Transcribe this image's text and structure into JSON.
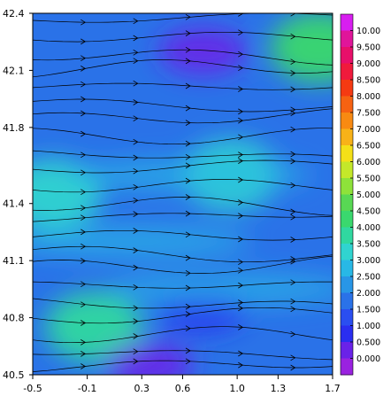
{
  "chart_data": {
    "type": "heatmap",
    "title": "",
    "xlabel": "",
    "ylabel": "",
    "xlim": [
      -0.5,
      1.7
    ],
    "ylim": [
      40.5,
      42.4
    ],
    "x_ticks": [
      "-0.5",
      "-0.1",
      "0.3",
      "0.6",
      "1.0",
      "1.3",
      "1.7"
    ],
    "x_tick_values": [
      -0.5,
      -0.1,
      0.3,
      0.6,
      1.0,
      1.3,
      1.7
    ],
    "y_ticks": [
      "42.4",
      "42.1",
      "41.8",
      "41.4",
      "41.1",
      "40.8",
      "40.5"
    ],
    "y_tick_values": [
      42.4,
      42.1,
      41.8,
      41.4,
      41.1,
      40.8,
      40.5
    ],
    "colorbar": {
      "labels": [
        "10.00",
        "9.500",
        "9.000",
        "8.500",
        "8.000",
        "7.500",
        "7.000",
        "6.500",
        "6.000",
        "5.500",
        "5.000",
        "4.500",
        "4.000",
        "3.500",
        "3.000",
        "2.500",
        "2.000",
        "1.500",
        "1.000",
        "0.500",
        "0.000"
      ],
      "levels": [
        10.0,
        9.5,
        9.0,
        8.5,
        8.0,
        7.5,
        7.0,
        6.5,
        6.0,
        5.5,
        5.0,
        4.5,
        4.0,
        3.5,
        3.0,
        2.5,
        2.0,
        1.5,
        1.0,
        0.5,
        0.0
      ],
      "colors": [
        "#d81ef0",
        "#e0159a",
        "#e80f6a",
        "#f01a3c",
        "#f53a12",
        "#f66212",
        "#f88a12",
        "#f8b218",
        "#f4e018",
        "#c4e82a",
        "#8ee23a",
        "#58d854",
        "#3ad86e",
        "#30d8a0",
        "#30d4d0",
        "#28b8e6",
        "#2896e6",
        "#2a72e8",
        "#2a4ef0",
        "#2a2ef0",
        "#6a22e8",
        "#9a22e0"
      ]
    },
    "field_description_values": {
      "background_level": 1.5,
      "high_zones": [
        {
          "x": -0.35,
          "y": 41.45,
          "level": 3.0
        },
        {
          "x": -0.05,
          "y": 40.75,
          "level": 3.5
        },
        {
          "x": 0.95,
          "y": 41.55,
          "level": 3.0
        },
        {
          "x": 1.6,
          "y": 42.22,
          "level": 4.0
        }
      ],
      "low_zones": [
        {
          "x": 0.75,
          "y": 42.2,
          "level": 0.0
        },
        {
          "x": 0.35,
          "y": 40.55,
          "level": 0.0
        },
        {
          "x": 0.75,
          "y": 40.85,
          "level": 0.5
        }
      ]
    },
    "streamlines": {
      "direction": "west-to-east",
      "count": 22
    }
  }
}
